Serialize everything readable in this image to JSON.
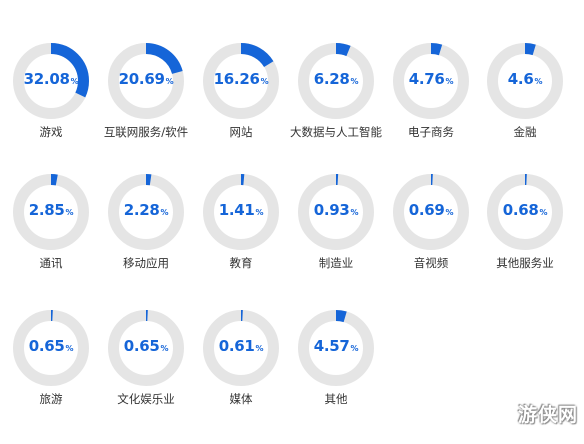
{
  "chart_data": {
    "type": "pie",
    "style": "donut-grid",
    "unit": "%",
    "colors": {
      "fill": "#1565d8",
      "track": "#e5e5e5",
      "value_text": "#1565d8",
      "label_text": "#333333"
    },
    "items": [
      {
        "label": "游戏",
        "value": 32.08,
        "value_text": "32.08"
      },
      {
        "label": "互联网服务/软件",
        "value": 20.69,
        "value_text": "20.69"
      },
      {
        "label": "网站",
        "value": 16.26,
        "value_text": "16.26"
      },
      {
        "label": "大数据与人工智能",
        "value": 6.28,
        "value_text": "6.28"
      },
      {
        "label": "电子商务",
        "value": 4.76,
        "value_text": "4.76"
      },
      {
        "label": "金融",
        "value": 4.6,
        "value_text": "4.6"
      },
      {
        "label": "通讯",
        "value": 2.85,
        "value_text": "2.85"
      },
      {
        "label": "移动应用",
        "value": 2.28,
        "value_text": "2.28"
      },
      {
        "label": "教育",
        "value": 1.41,
        "value_text": "1.41"
      },
      {
        "label": "制造业",
        "value": 0.93,
        "value_text": "0.93"
      },
      {
        "label": "音视频",
        "value": 0.69,
        "value_text": "0.69"
      },
      {
        "label": "其他服务业",
        "value": 0.68,
        "value_text": "0.68"
      },
      {
        "label": "旅游",
        "value": 0.65,
        "value_text": "0.65"
      },
      {
        "label": "文化娱乐业",
        "value": 0.65,
        "value_text": "0.65"
      },
      {
        "label": "媒体",
        "value": 0.61,
        "value_text": "0.61"
      },
      {
        "label": "其他",
        "value": 4.57,
        "value_text": "4.57"
      }
    ]
  },
  "watermark": "游侠网"
}
